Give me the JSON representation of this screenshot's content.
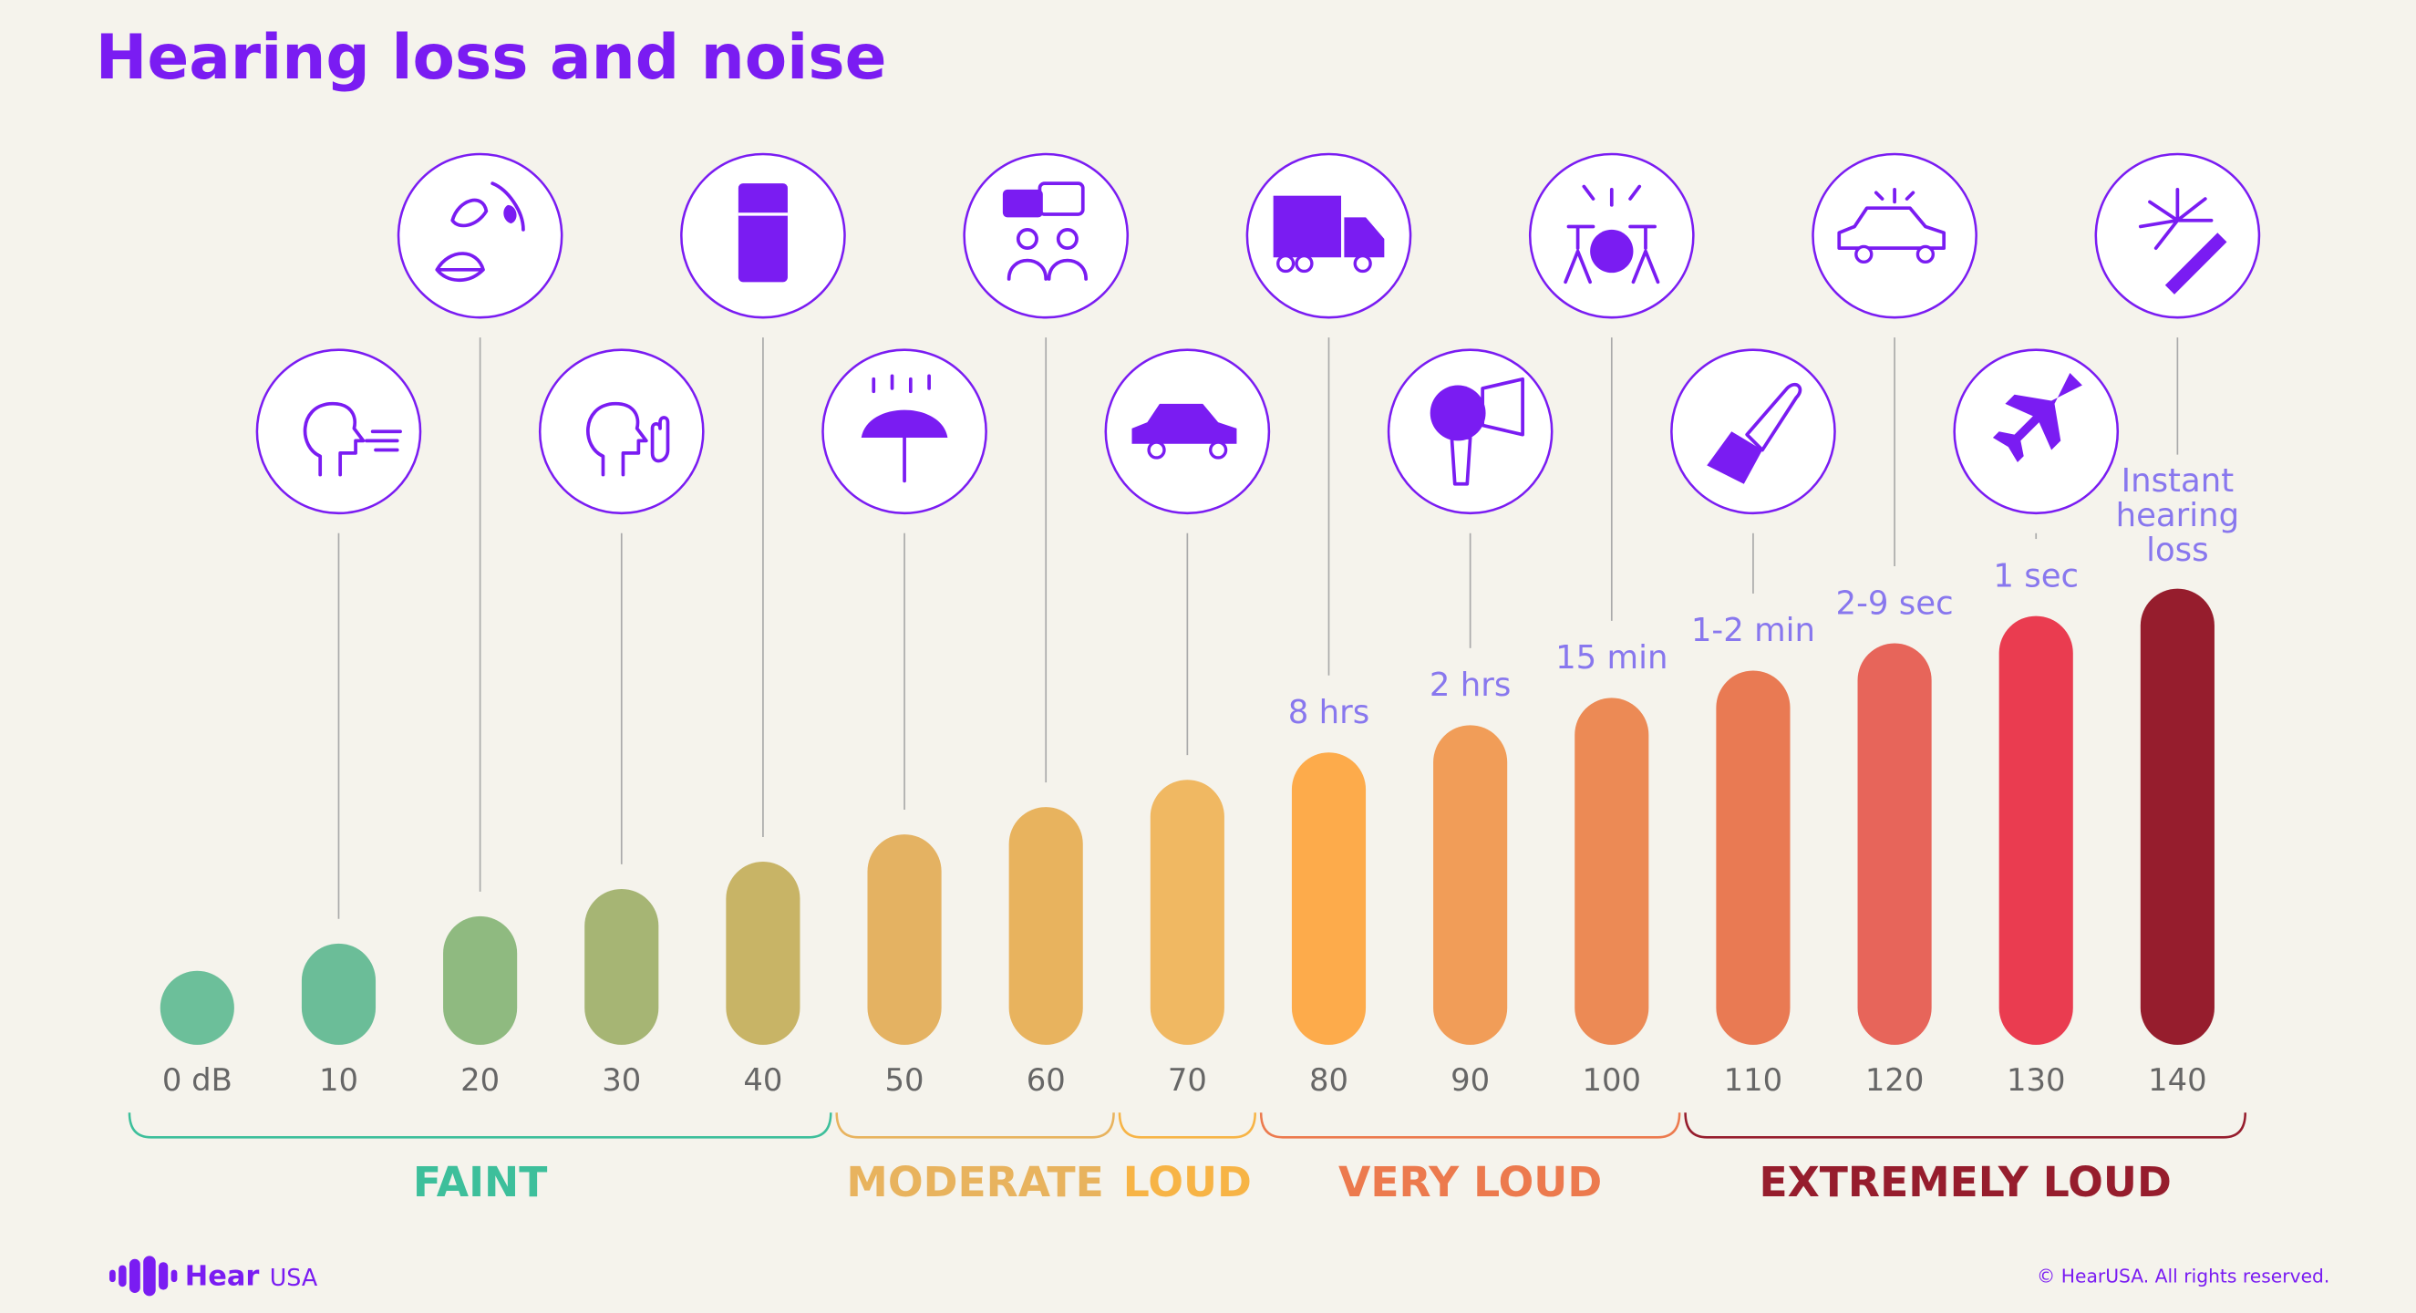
{
  "chart_data": {
    "type": "bar",
    "title": "Hearing loss and noise",
    "categories": [
      "0 dB",
      "10",
      "20",
      "30",
      "40",
      "50",
      "60",
      "70",
      "80",
      "90",
      "100",
      "110",
      "120",
      "130",
      "140"
    ],
    "values": [
      0,
      10,
      20,
      30,
      40,
      50,
      60,
      70,
      80,
      90,
      100,
      110,
      120,
      130,
      140
    ],
    "colors": [
      "#6cbf9a",
      "#6bbd98",
      "#8fba80",
      "#a6b574",
      "#c8b466",
      "#e4b262",
      "#e8b35e",
      "#f0b862",
      "#fdab4b",
      "#f19d58",
      "#ec8a55",
      "#e97a53",
      "#e7655a",
      "#ea3c50",
      "#961d2d"
    ],
    "exposure": [
      null,
      null,
      null,
      null,
      null,
      null,
      null,
      null,
      "8 hrs",
      "2 hrs",
      "15 min",
      "1-2 min",
      "2-9 sec",
      "1 sec",
      "Instant hearing loss"
    ],
    "groups": [
      {
        "name": "FAINT",
        "start": 0,
        "end": 4,
        "color": "#3dbf9b"
      },
      {
        "name": "MODERATE",
        "start": 5,
        "end": 6,
        "color": "#e8b35e"
      },
      {
        "name": "LOUD",
        "start": 7,
        "end": 7,
        "color": "#f7b446"
      },
      {
        "name": "VERY LOUD",
        "start": 8,
        "end": 10,
        "color": "#ec7a4e"
      },
      {
        "name": "EXTREMELY LOUD",
        "start": 11,
        "end": 14,
        "color": "#961d2d"
      }
    ]
  },
  "footer": {
    "brand": "Hear",
    "brand_suffix": "USA",
    "copyright": "© HearUSA. All rights reserved."
  }
}
